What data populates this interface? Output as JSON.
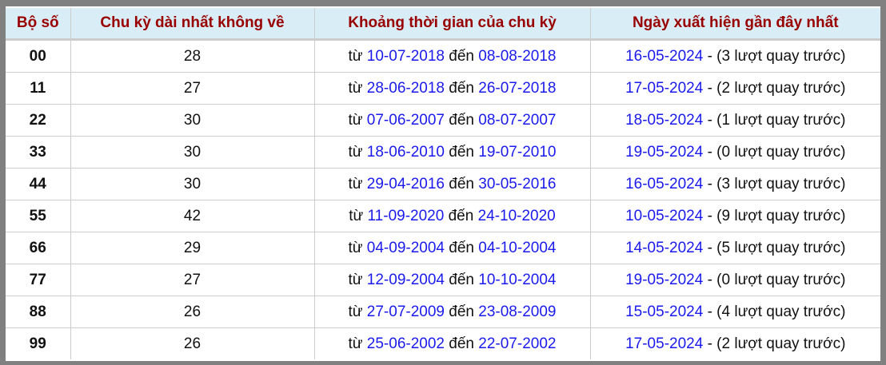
{
  "headers": [
    "Bộ số",
    "Chu kỳ dài nhất không về",
    "Khoảng thời gian của chu kỳ",
    "Ngày xuất hiện gần đây nhất"
  ],
  "labels": {
    "from": "từ",
    "to": "đến"
  },
  "colors": {
    "header_bg": "#d9edf7",
    "header_text": "#990000",
    "date": "#1a1aee",
    "frame": "#808080"
  },
  "rows": [
    {
      "pair": "00",
      "cycle": "28",
      "start": "10-07-2018",
      "end": "08-08-2018",
      "last": "16-05-2024",
      "ago": " - (3 lượt quay trước)"
    },
    {
      "pair": "11",
      "cycle": "27",
      "start": "28-06-2018",
      "end": "26-07-2018",
      "last": "17-05-2024",
      "ago": " - (2 lượt quay trước)"
    },
    {
      "pair": "22",
      "cycle": "30",
      "start": "07-06-2007",
      "end": "08-07-2007",
      "last": "18-05-2024",
      "ago": " - (1 lượt quay trước)"
    },
    {
      "pair": "33",
      "cycle": "30",
      "start": "18-06-2010",
      "end": "19-07-2010",
      "last": "19-05-2024",
      "ago": " - (0 lượt quay trước)"
    },
    {
      "pair": "44",
      "cycle": "30",
      "start": "29-04-2016",
      "end": "30-05-2016",
      "last": "16-05-2024",
      "ago": " - (3 lượt quay trước)"
    },
    {
      "pair": "55",
      "cycle": "42",
      "start": "11-09-2020",
      "end": "24-10-2020",
      "last": "10-05-2024",
      "ago": " - (9 lượt quay trước)"
    },
    {
      "pair": "66",
      "cycle": "29",
      "start": "04-09-2004",
      "end": "04-10-2004",
      "last": "14-05-2024",
      "ago": " - (5 lượt quay trước)"
    },
    {
      "pair": "77",
      "cycle": "27",
      "start": "12-09-2004",
      "end": "10-10-2004",
      "last": "19-05-2024",
      "ago": " - (0 lượt quay trước)"
    },
    {
      "pair": "88",
      "cycle": "26",
      "start": "27-07-2009",
      "end": "23-08-2009",
      "last": "15-05-2024",
      "ago": " - (4 lượt quay trước)"
    },
    {
      "pair": "99",
      "cycle": "26",
      "start": "25-06-2002",
      "end": "22-07-2002",
      "last": "17-05-2024",
      "ago": " - (2 lượt quay trước)"
    }
  ]
}
